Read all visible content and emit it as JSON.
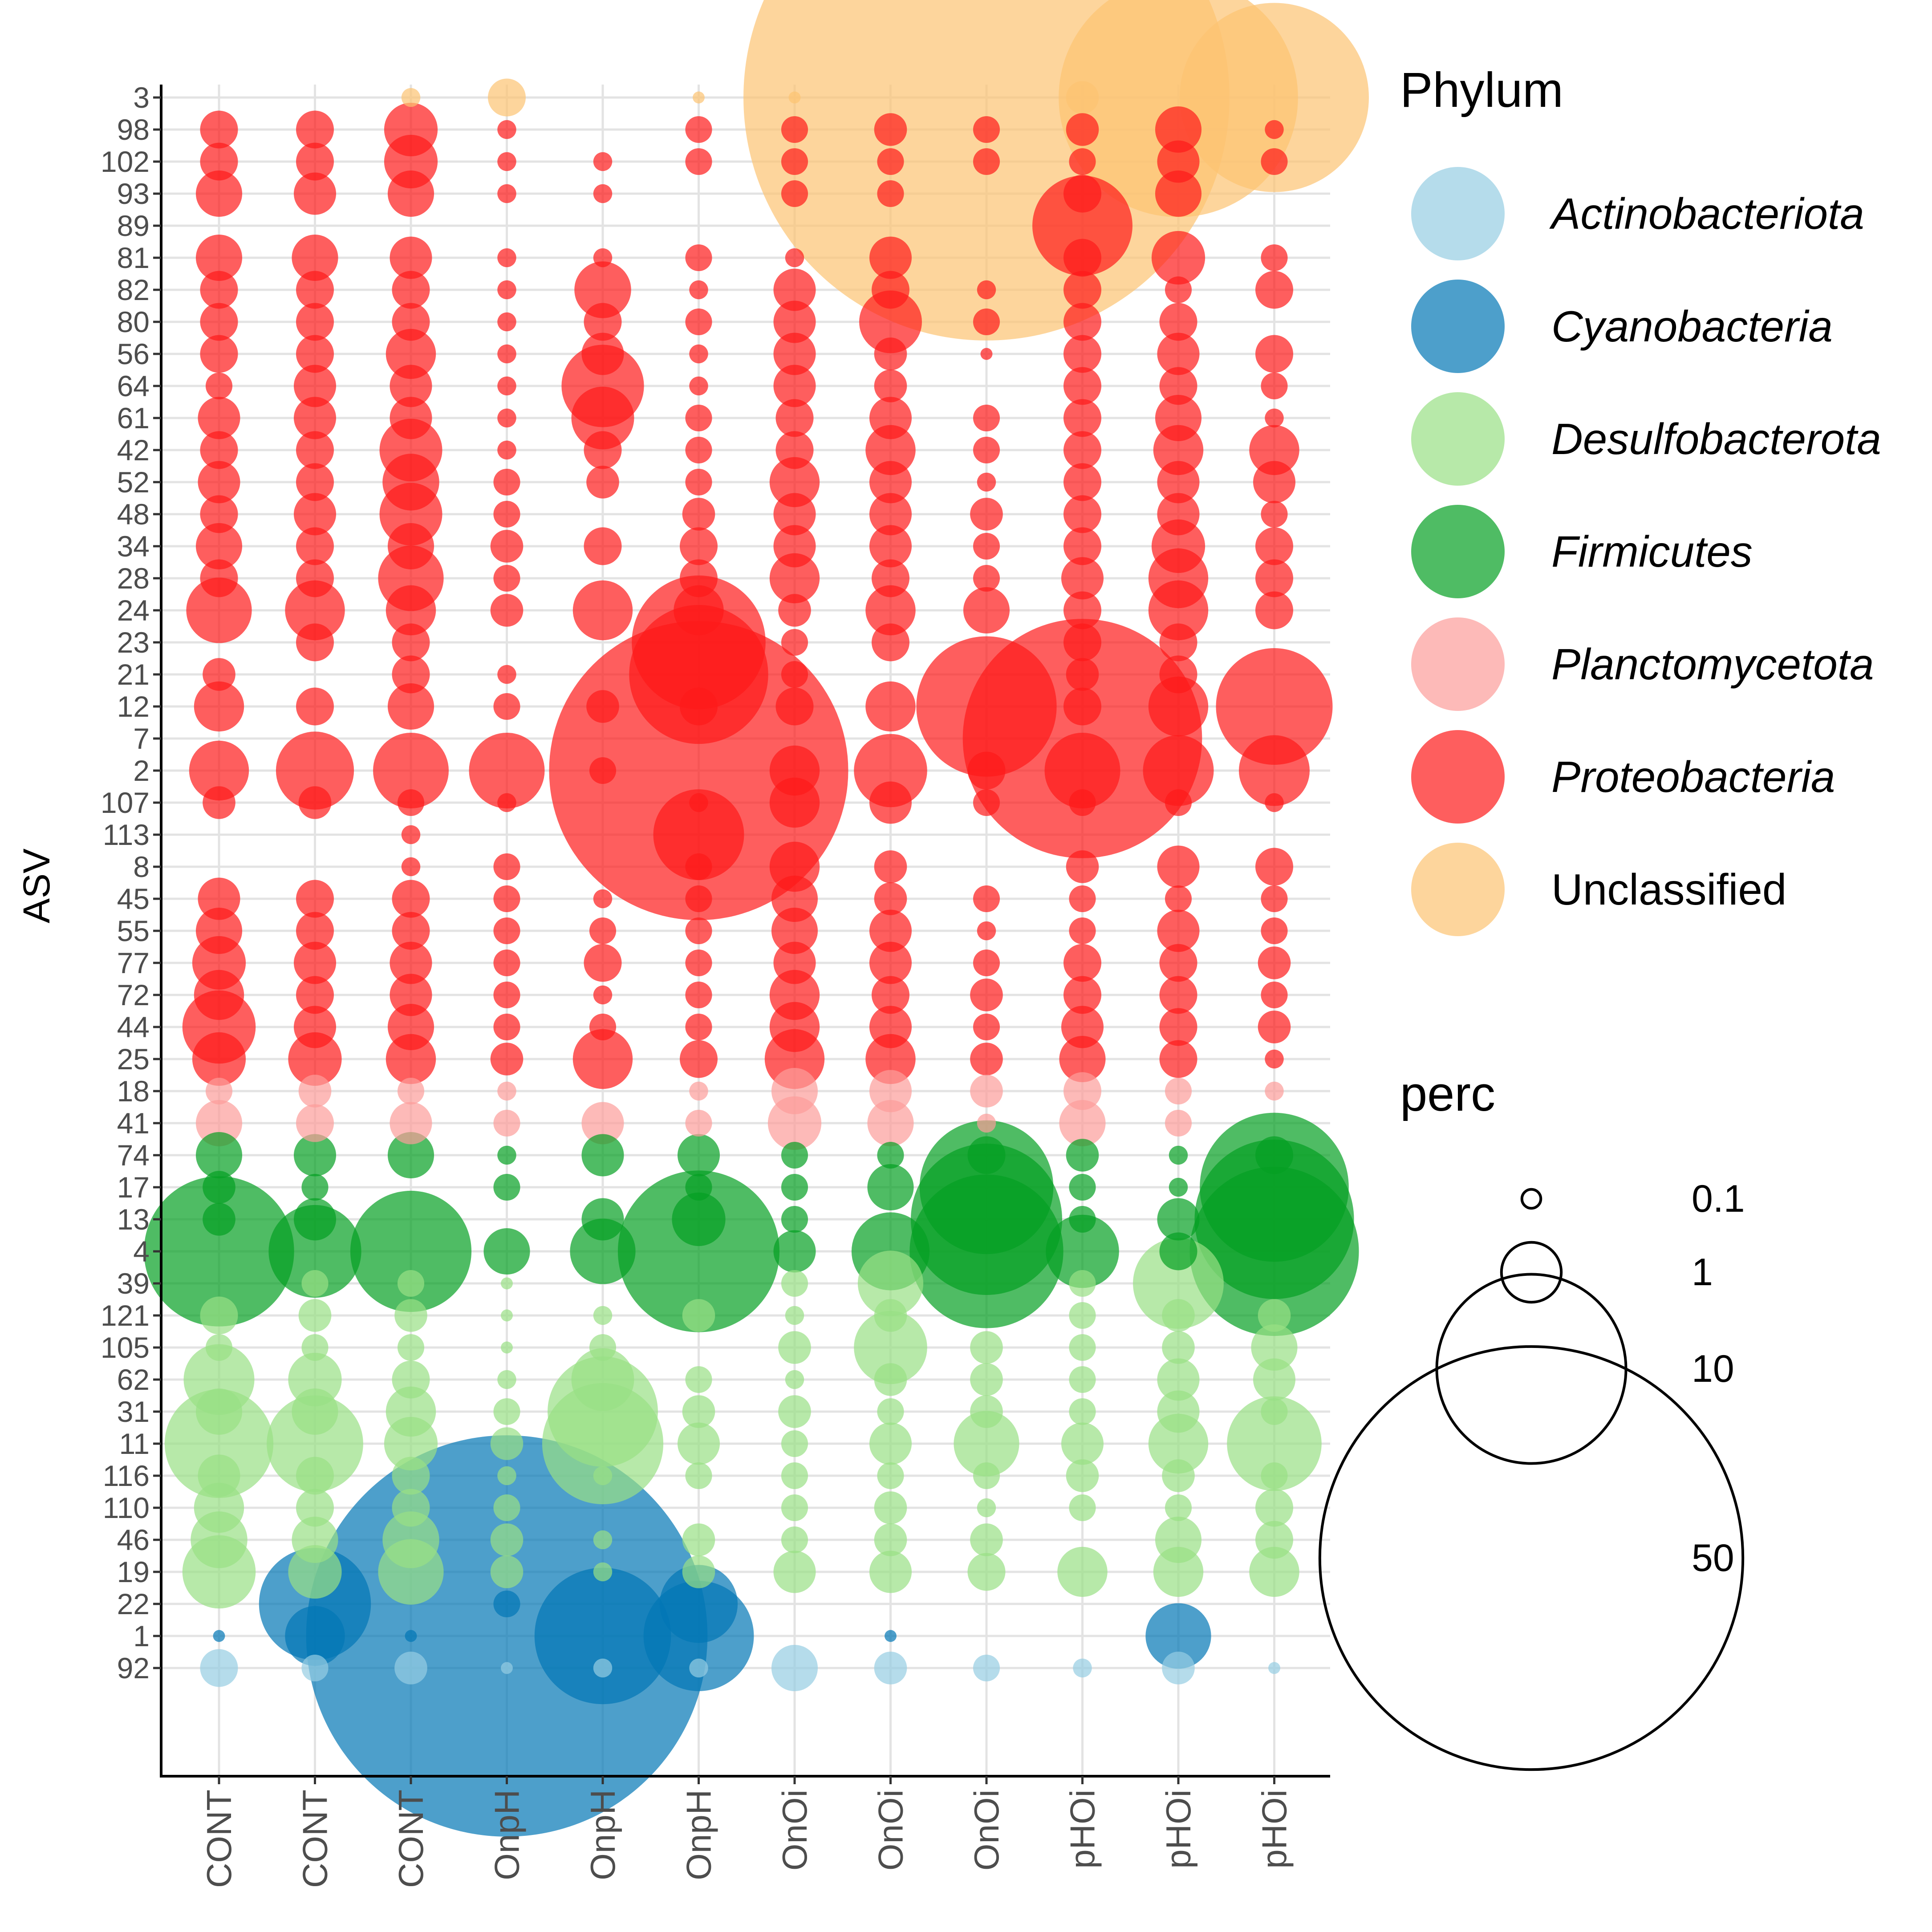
{
  "chart_data": {
    "type": "bubble",
    "xlabel": "",
    "ylabel": "ASV",
    "samples": [
      "CONT",
      "CONT",
      "CONT",
      "OnpH",
      "OnpH",
      "OnpH",
      "OnOi",
      "OnOi",
      "OnOi",
      "pHOi",
      "pHOi",
      "pHOi"
    ],
    "asvs": [
      "3",
      "98",
      "102",
      "93",
      "89",
      "81",
      "82",
      "80",
      "56",
      "64",
      "61",
      "42",
      "52",
      "48",
      "34",
      "28",
      "24",
      "23",
      "21",
      "12",
      "7",
      "2",
      "107",
      "113",
      "8",
      "45",
      "55",
      "77",
      "72",
      "44",
      "25",
      "18",
      "41",
      "74",
      "17",
      "13",
      "4",
      "39",
      "121",
      "105",
      "62",
      "31",
      "11",
      "116",
      "110",
      "46",
      "19",
      "22",
      "1",
      "92"
    ],
    "asv_phylum": {
      "3": "Unclassified",
      "98": "Proteobacteria",
      "102": "Proteobacteria",
      "93": "Proteobacteria",
      "89": "Proteobacteria",
      "81": "Proteobacteria",
      "82": "Proteobacteria",
      "80": "Proteobacteria",
      "56": "Proteobacteria",
      "64": "Proteobacteria",
      "61": "Proteobacteria",
      "42": "Proteobacteria",
      "52": "Proteobacteria",
      "48": "Proteobacteria",
      "34": "Proteobacteria",
      "28": "Proteobacteria",
      "24": "Proteobacteria",
      "23": "Proteobacteria",
      "21": "Proteobacteria",
      "12": "Proteobacteria",
      "7": "Proteobacteria",
      "2": "Proteobacteria",
      "107": "Proteobacteria",
      "113": "Proteobacteria",
      "8": "Proteobacteria",
      "45": "Proteobacteria",
      "55": "Proteobacteria",
      "77": "Proteobacteria",
      "72": "Proteobacteria",
      "44": "Proteobacteria",
      "25": "Proteobacteria",
      "18": "Planctomycetota",
      "41": "Planctomycetota",
      "74": "Firmicutes",
      "17": "Firmicutes",
      "13": "Firmicutes",
      "4": "Firmicutes",
      "39": "Desulfobacterota",
      "121": "Desulfobacterota",
      "105": "Desulfobacterota",
      "62": "Desulfobacterota",
      "31": "Desulfobacterota",
      "11": "Desulfobacterota",
      "116": "Desulfobacterota",
      "110": "Desulfobacterota",
      "46": "Desulfobacterota",
      "19": "Desulfobacterota",
      "22": "Cyanobacteria",
      "1": "Cyanobacteria",
      "92": "Actinobacteriota"
    },
    "phylum_colors": {
      "Actinobacteriota": "#95cde3",
      "Cyanobacteria": "#0276b5",
      "Desulfobacterota": "#98df85",
      "Firmicutes": "#04a022",
      "Planctomycetota": "#fc9c9a",
      "Proteobacteria": "#fe1919",
      "Unclassified": "#fcc372"
    },
    "values": {
      "3": [
        0,
        0,
        0.1,
        0.4,
        0,
        0.04,
        0.04,
        0,
        66,
        0.3,
        16,
        10
      ],
      "98": [
        0.4,
        0.4,
        0.8,
        0.1,
        0,
        0.2,
        0.2,
        0.3,
        0.2,
        0.3,
        0.6,
        0.1
      ],
      "102": [
        0.4,
        0.4,
        0.8,
        0.1,
        0.1,
        0.2,
        0.2,
        0.2,
        0.2,
        0.2,
        0.5,
        0.2
      ],
      "93": [
        0.6,
        0.5,
        0.6,
        0.1,
        0.1,
        0,
        0.2,
        0.2,
        0,
        0.4,
        0.6,
        0
      ],
      "89": [
        0,
        0,
        0,
        0,
        0,
        0,
        0,
        0,
        0,
        2.8,
        0,
        0
      ],
      "81": [
        0.6,
        0.6,
        0.5,
        0.1,
        0.1,
        0.2,
        0.1,
        0.5,
        0,
        0.4,
        0.8,
        0.2
      ],
      "82": [
        0.4,
        0.4,
        0.4,
        0.1,
        0.9,
        0.1,
        0.5,
        0.4,
        0.1,
        0.4,
        0.2,
        0.4
      ],
      "80": [
        0.4,
        0.4,
        0.4,
        0.1,
        0.4,
        0.2,
        0.5,
        1.1,
        0.2,
        0.4,
        0.4,
        0
      ],
      "56": [
        0.4,
        0.4,
        0.7,
        0.1,
        0.5,
        0.1,
        0.5,
        0.3,
        0.04,
        0.4,
        0.5,
        0.4
      ],
      "64": [
        0.2,
        0.5,
        0.5,
        0.1,
        1.9,
        0.1,
        0.5,
        0.3,
        0,
        0.4,
        0.4,
        0.2
      ],
      "61": [
        0.5,
        0.5,
        0.5,
        0.1,
        1.1,
        0.2,
        0.4,
        0.5,
        0.2,
        0.4,
        0.6,
        0.1
      ],
      "42": [
        0.4,
        0.4,
        1.1,
        0.1,
        0.4,
        0.2,
        0.4,
        0.7,
        0.2,
        0.4,
        0.7,
        0.7
      ],
      "52": [
        0.5,
        0.4,
        0.9,
        0.2,
        0.3,
        0.2,
        0.7,
        0.5,
        0.1,
        0.4,
        0.5,
        0.5
      ],
      "48": [
        0.4,
        0.5,
        1.1,
        0.2,
        0,
        0.3,
        0.5,
        0.5,
        0.3,
        0.4,
        0.5,
        0.2
      ],
      "34": [
        0.6,
        0.4,
        0.6,
        0.3,
        0.4,
        0.4,
        0.5,
        0.5,
        0.2,
        0.4,
        0.8,
        0.4
      ],
      "28": [
        0.4,
        0.4,
        1.2,
        0.2,
        0,
        0.4,
        0.7,
        0.4,
        0.2,
        0.5,
        1.0,
        0.4
      ],
      "24": [
        1.2,
        1.0,
        0.7,
        0.3,
        1.0,
        0.7,
        0.3,
        0.7,
        0.6,
        0.4,
        1.0,
        0.4
      ],
      "23": [
        0,
        0.4,
        0.4,
        0,
        0,
        5,
        0.2,
        0.4,
        0,
        0.4,
        0.4,
        0
      ],
      "21": [
        0.3,
        0,
        0.4,
        0.1,
        0,
        5.4,
        0.2,
        0,
        0,
        0.3,
        0.4,
        0
      ],
      "12": [
        0.7,
        0.4,
        0.6,
        0.2,
        0.3,
        0.4,
        0.4,
        0.7,
        5.5,
        0.4,
        1.0,
        3.8
      ],
      "7": [
        0,
        0,
        0,
        0,
        0,
        0,
        0,
        0,
        0,
        16,
        0,
        0
      ],
      "2": [
        1.0,
        1.7,
        1.6,
        1.6,
        0.2,
        25,
        0.7,
        1.5,
        0.4,
        1.6,
        1.4,
        1.4
      ],
      "107": [
        0.3,
        0.3,
        0.2,
        0.1,
        0,
        0.1,
        0.7,
        0.5,
        0.2,
        0.2,
        0.2,
        0.1
      ],
      "113": [
        0,
        0,
        0.1,
        0,
        0,
        2.3,
        0,
        0,
        0,
        0,
        0,
        0
      ],
      "8": [
        0,
        0,
        0.1,
        0.2,
        0,
        0.2,
        0.7,
        0.3,
        0,
        0.3,
        0.5,
        0.4
      ],
      "45": [
        0.5,
        0.4,
        0.4,
        0.2,
        0.1,
        0.2,
        0.6,
        0.3,
        0.2,
        0.2,
        0.2,
        0.2
      ],
      "55": [
        0.6,
        0.4,
        0.4,
        0.2,
        0.2,
        0.2,
        0.6,
        0.5,
        0.1,
        0.2,
        0.5,
        0.2
      ],
      "77": [
        0.8,
        0.5,
        0.5,
        0.2,
        0.4,
        0.2,
        0.5,
        0.5,
        0.2,
        0.4,
        0.4,
        0.3
      ],
      "72": [
        0.7,
        0.4,
        0.5,
        0.2,
        0.1,
        0.2,
        0.7,
        0.4,
        0.3,
        0.4,
        0.4,
        0.2
      ],
      "44": [
        1.5,
        0.5,
        0.6,
        0.2,
        0.2,
        0.2,
        0.7,
        0.5,
        0.2,
        0.5,
        0.4,
        0.3
      ],
      "25": [
        0.8,
        0.8,
        0.7,
        0.3,
        1.0,
        0.4,
        1.0,
        0.7,
        0.3,
        0.6,
        0.4,
        0.1
      ],
      "18": [
        0.2,
        0.3,
        0.2,
        0.1,
        0,
        0.1,
        0.6,
        0.5,
        0.3,
        0.4,
        0.2,
        0.1
      ],
      "41": [
        0.6,
        0.4,
        0.5,
        0.2,
        0.5,
        0.2,
        0.8,
        0.6,
        0.1,
        0.6,
        0.2,
        0
      ],
      "74": [
        0.6,
        0.5,
        0.6,
        0.1,
        0.5,
        0.5,
        0.2,
        0.2,
        0.4,
        0.3,
        0.1,
        0.4
      ],
      "17": [
        0.3,
        0.2,
        0,
        0.2,
        0,
        0.2,
        0.2,
        0.6,
        5,
        0.2,
        0.1,
        6.2
      ],
      "13": [
        0.3,
        0.5,
        0,
        0,
        0.5,
        0.8,
        0.2,
        0,
        6.4,
        0.2,
        0.5,
        7.1
      ],
      "4": [
        6.3,
        2.4,
        4.1,
        0.6,
        1.2,
        7.3,
        0.5,
        1.7,
        6.6,
        1.5,
        0.4,
        8
      ],
      "39": [
        0,
        0.2,
        0.2,
        0.04,
        0,
        0,
        0.2,
        1.2,
        0,
        0.2,
        2.3,
        0
      ],
      "121": [
        0.4,
        0.3,
        0.3,
        0.04,
        0.1,
        0.3,
        0.1,
        0.3,
        0,
        0.2,
        0.3,
        0.3
      ],
      "105": [
        0.2,
        0.2,
        0.2,
        0.04,
        0.2,
        0,
        0.3,
        1.5,
        0.3,
        0.2,
        0.3,
        0.6
      ],
      "62": [
        1.4,
        0.8,
        0.4,
        0.1,
        1.1,
        0.2,
        0.1,
        0.3,
        0.3,
        0.2,
        0.5,
        0.5
      ],
      "31": [
        0.6,
        0.6,
        0.7,
        0.2,
        3.4,
        0.3,
        0.3,
        0.2,
        0.3,
        0.2,
        0.5,
        0.2
      ],
      "11": [
        3.3,
        2.6,
        0.8,
        0.3,
        4.1,
        0.5,
        0.2,
        0.5,
        1.2,
        0.5,
        1.0,
        2.5
      ],
      "116": [
        0.5,
        0.4,
        0.4,
        0.1,
        0.1,
        0.2,
        0.2,
        0.2,
        0.2,
        0.3,
        0.3,
        0.2
      ],
      "110": [
        0.7,
        0.4,
        0.4,
        0.2,
        0,
        0,
        0.2,
        0.3,
        0.1,
        0.2,
        0.2,
        0.4
      ],
      "46": [
        0.9,
        0.6,
        0.9,
        0.3,
        0.1,
        0.3,
        0.2,
        0.3,
        0.3,
        0,
        0.6,
        0.4
      ],
      "19": [
        1.5,
        0.8,
        1.2,
        0.3,
        0.1,
        0.3,
        0.5,
        0.5,
        0.4,
        0.7,
        0.7,
        0.7
      ],
      "22": [
        0,
        3.5,
        0,
        0.2,
        0,
        1.7,
        0,
        0,
        0,
        0,
        0,
        0
      ],
      "1": [
        0.04,
        1.0,
        0.04,
        45,
        5.2,
        3.4,
        0,
        0.04,
        0,
        0,
        1.2,
        0
      ],
      "92": [
        0.4,
        0.2,
        0.3,
        0.04,
        0.1,
        0.1,
        0.6,
        0.3,
        0.2,
        0.1,
        0.3,
        0.04
      ]
    },
    "legend": {
      "color_title": "Phylum",
      "color_entries": [
        "Actinobacteriota",
        "Cyanobacteria",
        "Desulfobacterota",
        "Firmicutes",
        "Planctomycetota",
        "Proteobacteria",
        "Unclassified"
      ],
      "size_title": "perc",
      "size_entries": [
        0.1,
        1,
        10,
        50
      ],
      "size_labels": [
        "0.1",
        "1",
        "10",
        "50"
      ]
    },
    "grid": true,
    "opacity": 0.7
  }
}
